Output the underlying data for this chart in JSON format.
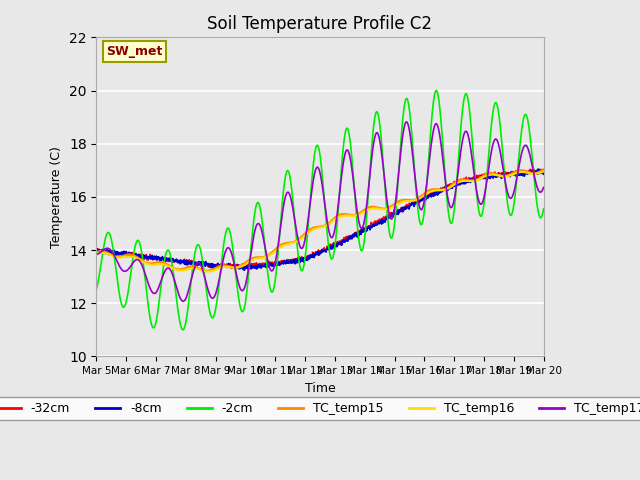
{
  "title": "Soil Temperature Profile C2",
  "xlabel": "Time",
  "ylabel": "Temperature (C)",
  "ylim": [
    10,
    22
  ],
  "yticks": [
    10,
    12,
    14,
    16,
    18,
    20,
    22
  ],
  "plot_bg_color": "#e8e8e8",
  "annotation_text": "SW_met",
  "annotation_bg": "#ffffcc",
  "annotation_border": "#999900",
  "annotation_text_color": "#880000",
  "series": {
    "neg32cm": {
      "color": "#ff0000",
      "label": "-32cm",
      "lw": 1.2
    },
    "neg8cm": {
      "color": "#0000cc",
      "label": "-8cm",
      "lw": 1.2
    },
    "neg2cm": {
      "color": "#00ee00",
      "label": "-2cm",
      "lw": 1.2
    },
    "TC_temp15": {
      "color": "#ff8800",
      "label": "TC_temp15",
      "lw": 1.5
    },
    "TC_temp16": {
      "color": "#ffdd00",
      "label": "TC_temp16",
      "lw": 1.5
    },
    "TC_temp17": {
      "color": "#9900cc",
      "label": "TC_temp17",
      "lw": 1.2
    }
  },
  "legend_fontsize": 9
}
